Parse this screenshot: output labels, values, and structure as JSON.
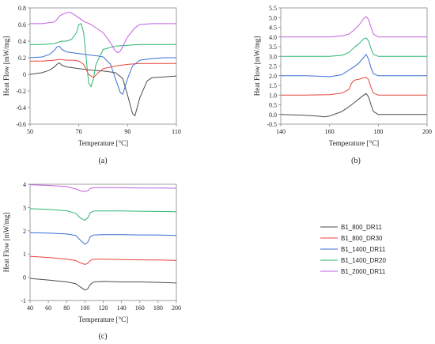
{
  "legend": {
    "entries": [
      {
        "name": "B1_800_DR11",
        "color": "#4d4d4d"
      },
      {
        "name": "B1_800_DR30",
        "color": "#e8453c"
      },
      {
        "name": "B1_1400_DR11",
        "color": "#3b6fd4"
      },
      {
        "name": "B1_1400_DR20",
        "color": "#2bb673"
      },
      {
        "name": "B1_2000_DR11",
        "color": "#c060e0"
      }
    ]
  },
  "chart_data": [
    {
      "id": "a",
      "panel_label": "(a)",
      "type": "line",
      "xlabel": "Temperature [°C]",
      "ylabel": "Heat Flow [mW/mg]",
      "xlim": [
        50,
        110
      ],
      "ylim": [
        -0.6,
        0.8
      ],
      "xticks": [
        50,
        70,
        90,
        110
      ],
      "xtick_labels": [
        "50",
        "70",
        "90",
        "110"
      ],
      "yticks": [
        -0.6,
        -0.4,
        -0.2,
        0,
        0.2,
        0.4,
        0.6,
        0.8
      ],
      "ytick_labels": [
        "-0.6",
        "-0.4",
        "-0.2",
        "0",
        "0.2",
        "0.4",
        "0.6",
        "0.8"
      ],
      "grid": false,
      "series": [
        {
          "name": "B1_800_DR11",
          "x": [
            50,
            55,
            58,
            60,
            61,
            62,
            63,
            65,
            70,
            75,
            80,
            85,
            88,
            90,
            92,
            93,
            95,
            98,
            100,
            105,
            110
          ],
          "y": [
            0.0,
            0.02,
            0.05,
            0.09,
            0.12,
            0.14,
            0.11,
            0.09,
            0.07,
            0.05,
            0.04,
            0.02,
            -0.05,
            -0.25,
            -0.47,
            -0.5,
            -0.28,
            -0.08,
            -0.04,
            -0.03,
            -0.02
          ]
        },
        {
          "name": "B1_800_DR30",
          "x": [
            50,
            55,
            60,
            62,
            65,
            68,
            70,
            72,
            74,
            76,
            78,
            80,
            85,
            90,
            95,
            100,
            105,
            110
          ],
          "y": [
            0.16,
            0.16,
            0.17,
            0.18,
            0.17,
            0.17,
            0.16,
            0.12,
            0.0,
            -0.04,
            0.02,
            0.07,
            0.1,
            0.12,
            0.13,
            0.13,
            0.13,
            0.13
          ]
        },
        {
          "name": "B1_1400_DR11",
          "x": [
            50,
            55,
            58,
            60,
            61,
            62,
            63,
            65,
            70,
            75,
            78,
            80,
            83,
            85,
            87,
            88,
            90,
            92,
            95,
            100,
            105,
            110
          ],
          "y": [
            0.2,
            0.21,
            0.24,
            0.29,
            0.33,
            0.34,
            0.3,
            0.27,
            0.25,
            0.23,
            0.22,
            0.21,
            0.12,
            -0.05,
            -0.22,
            -0.24,
            -0.05,
            0.1,
            0.17,
            0.19,
            0.2,
            0.2
          ]
        },
        {
          "name": "B1_1400_DR20",
          "x": [
            50,
            55,
            60,
            62,
            63,
            65,
            67,
            69,
            70,
            71,
            72,
            73,
            74,
            75,
            76,
            77,
            80,
            85,
            90,
            95,
            100,
            110
          ],
          "y": [
            0.36,
            0.36,
            0.37,
            0.39,
            0.4,
            0.4,
            0.42,
            0.5,
            0.6,
            0.61,
            0.5,
            0.2,
            -0.1,
            -0.15,
            -0.05,
            0.12,
            0.3,
            0.34,
            0.35,
            0.36,
            0.36,
            0.36
          ]
        },
        {
          "name": "B1_2000_DR11",
          "x": [
            50,
            55,
            60,
            61,
            62,
            63,
            64,
            65,
            66,
            67,
            68,
            70,
            72,
            75,
            80,
            83,
            85,
            86,
            87,
            90,
            93,
            95,
            100,
            110
          ],
          "y": [
            0.61,
            0.61,
            0.63,
            0.66,
            0.7,
            0.72,
            0.73,
            0.74,
            0.75,
            0.74,
            0.72,
            0.68,
            0.64,
            0.6,
            0.5,
            0.38,
            0.28,
            0.26,
            0.28,
            0.45,
            0.56,
            0.6,
            0.61,
            0.61
          ]
        }
      ]
    },
    {
      "id": "b",
      "panel_label": "(b)",
      "type": "line",
      "xlabel": "Temperature [°C]",
      "ylabel": "Heat Flow [mW/mg]",
      "xlim": [
        140,
        200
      ],
      "ylim": [
        -0.5,
        5.5
      ],
      "xticks": [
        140,
        160,
        180,
        200
      ],
      "xtick_labels": [
        "140",
        "160",
        "180",
        "200"
      ],
      "yticks": [
        -0.5,
        0,
        0.5,
        1,
        1.5,
        2,
        2.5,
        3,
        3.5,
        4,
        4.5,
        5,
        5.5
      ],
      "ytick_labels": [
        "-0.5",
        "0.0",
        "0.5",
        "1.0",
        "1.5",
        "2.0",
        "2.5",
        "3.0",
        "3.5",
        "4.0",
        "4.5",
        "5.0",
        "5.5"
      ],
      "grid": false,
      "series": [
        {
          "name": "B1_800_DR11",
          "x": [
            140,
            145,
            150,
            155,
            158,
            160,
            165,
            168,
            170,
            172,
            174,
            175,
            176,
            177,
            178,
            180,
            185,
            190,
            200
          ],
          "y": [
            0.0,
            -0.02,
            -0.04,
            -0.08,
            -0.12,
            -0.08,
            0.15,
            0.4,
            0.6,
            0.8,
            1.0,
            1.08,
            0.9,
            0.5,
            0.15,
            0.0,
            0.0,
            0.0,
            0.0
          ]
        },
        {
          "name": "B1_800_DR30",
          "x": [
            140,
            150,
            160,
            165,
            168,
            169,
            170,
            171,
            172,
            173,
            174,
            175,
            176,
            177,
            178,
            180,
            190,
            200
          ],
          "y": [
            1.0,
            1.0,
            1.02,
            1.1,
            1.3,
            1.6,
            1.75,
            1.8,
            1.82,
            1.85,
            1.9,
            1.92,
            1.8,
            1.4,
            1.1,
            1.0,
            1.0,
            1.0
          ]
        },
        {
          "name": "B1_1400_DR11",
          "x": [
            140,
            150,
            155,
            160,
            165,
            168,
            170,
            172,
            174,
            175,
            176,
            177,
            178,
            180,
            190,
            200
          ],
          "y": [
            2.0,
            2.0,
            1.98,
            1.95,
            2.05,
            2.3,
            2.45,
            2.65,
            2.95,
            3.1,
            2.85,
            2.4,
            2.1,
            2.0,
            2.0,
            2.0
          ]
        },
        {
          "name": "B1_1400_DR20",
          "x": [
            140,
            150,
            160,
            165,
            168,
            170,
            172,
            174,
            175,
            176,
            177,
            178,
            180,
            190,
            200
          ],
          "y": [
            3.0,
            3.0,
            3.0,
            3.05,
            3.2,
            3.45,
            3.65,
            3.9,
            3.95,
            3.8,
            3.4,
            3.1,
            3.0,
            3.0,
            3.0
          ]
        },
        {
          "name": "B1_2000_DR11",
          "x": [
            140,
            150,
            160,
            165,
            168,
            170,
            172,
            174,
            175,
            176,
            177,
            178,
            180,
            190,
            200
          ],
          "y": [
            4.0,
            4.0,
            4.0,
            4.05,
            4.15,
            4.35,
            4.6,
            4.95,
            5.05,
            4.9,
            4.5,
            4.15,
            4.0,
            4.0,
            4.0
          ]
        }
      ]
    },
    {
      "id": "c",
      "panel_label": "(c)",
      "type": "line",
      "xlabel": "Temperature [°C]",
      "ylabel": "Heat Flow [mW/mg]",
      "xlim": [
        40,
        200
      ],
      "ylim": [
        -1,
        4
      ],
      "xticks": [
        40,
        60,
        80,
        100,
        120,
        140,
        160,
        180,
        200
      ],
      "xtick_labels": [
        "40",
        "60",
        "80",
        "100",
        "120",
        "140",
        "160",
        "180",
        "200"
      ],
      "yticks": [
        -1,
        0,
        1,
        2,
        3,
        4
      ],
      "ytick_labels": [
        "-1",
        "0",
        "1",
        "2",
        "3",
        "4"
      ],
      "grid": false,
      "series": [
        {
          "name": "B1_800_DR11",
          "x": [
            40,
            60,
            80,
            90,
            95,
            100,
            103,
            106,
            110,
            120,
            140,
            160,
            180,
            200
          ],
          "y": [
            -0.05,
            -0.12,
            -0.2,
            -0.28,
            -0.42,
            -0.55,
            -0.5,
            -0.3,
            -0.2,
            -0.18,
            -0.2,
            -0.2,
            -0.22,
            -0.25
          ]
        },
        {
          "name": "B1_800_DR30",
          "x": [
            40,
            60,
            80,
            90,
            95,
            100,
            103,
            106,
            110,
            120,
            140,
            160,
            180,
            200
          ],
          "y": [
            0.9,
            0.85,
            0.78,
            0.72,
            0.62,
            0.55,
            0.6,
            0.72,
            0.78,
            0.78,
            0.76,
            0.75,
            0.74,
            0.72
          ]
        },
        {
          "name": "B1_1400_DR11",
          "x": [
            40,
            60,
            80,
            90,
            95,
            100,
            103,
            106,
            110,
            120,
            140,
            160,
            180,
            200
          ],
          "y": [
            1.92,
            1.9,
            1.86,
            1.8,
            1.6,
            1.42,
            1.5,
            1.75,
            1.82,
            1.83,
            1.83,
            1.82,
            1.82,
            1.8
          ]
        },
        {
          "name": "B1_1400_DR20",
          "x": [
            40,
            60,
            80,
            90,
            95,
            100,
            103,
            106,
            110,
            120,
            140,
            160,
            180,
            200
          ],
          "y": [
            2.95,
            2.92,
            2.86,
            2.75,
            2.55,
            2.45,
            2.55,
            2.78,
            2.85,
            2.85,
            2.85,
            2.84,
            2.83,
            2.82
          ]
        },
        {
          "name": "B1_2000_DR11",
          "x": [
            40,
            60,
            80,
            90,
            95,
            100,
            103,
            106,
            110,
            120,
            140,
            160,
            180,
            200
          ],
          "y": [
            3.98,
            3.95,
            3.9,
            3.8,
            3.72,
            3.68,
            3.72,
            3.82,
            3.85,
            3.85,
            3.85,
            3.84,
            3.84,
            3.83
          ]
        }
      ]
    }
  ]
}
